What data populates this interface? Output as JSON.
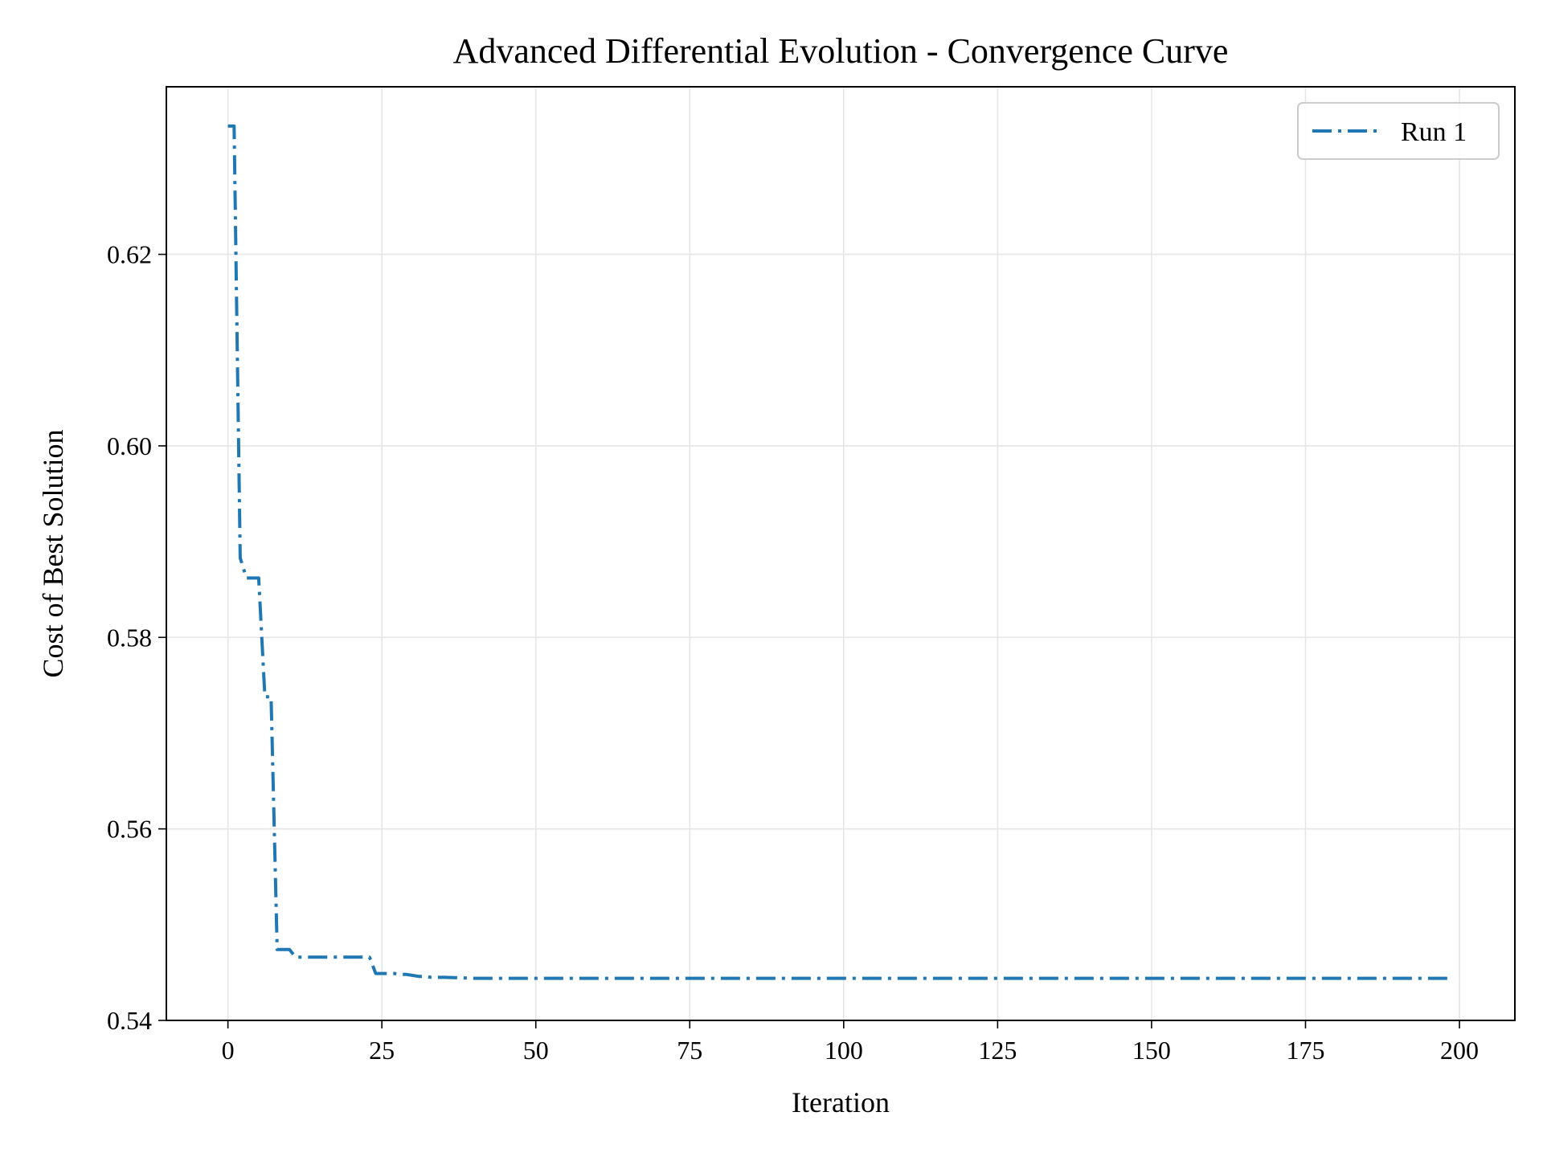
{
  "chart_data": {
    "type": "line",
    "title": "Advanced Differential Evolution - Convergence Curve",
    "xlabel": "Iteration",
    "ylabel": "Cost of Best Solution",
    "xlim": [
      -10,
      209
    ],
    "ylim": [
      0.54,
      0.6375
    ],
    "xticks": [
      0,
      25,
      50,
      75,
      100,
      125,
      150,
      175,
      200
    ],
    "xtick_labels": [
      "0",
      "25",
      "50",
      "75",
      "100",
      "125",
      "150",
      "175",
      "200"
    ],
    "yticks": [
      0.54,
      0.56,
      0.58,
      0.6,
      0.62
    ],
    "ytick_labels": [
      "0.54",
      "0.56",
      "0.58",
      "0.60",
      "0.62"
    ],
    "grid": true,
    "legend": {
      "position": "top-right",
      "entries": [
        "Run 1"
      ]
    },
    "series": [
      {
        "name": "Run 1",
        "color": "#1f77b4",
        "linestyle": "dash-dot",
        "x": [
          0,
          1,
          2,
          3,
          4,
          5,
          6,
          7,
          8,
          9,
          10,
          11,
          12,
          13,
          14,
          15,
          16,
          17,
          18,
          19,
          20,
          21,
          22,
          23,
          24,
          25,
          26,
          27,
          28,
          29,
          30,
          31,
          32,
          33,
          34,
          35,
          40,
          50,
          60,
          80,
          100,
          125,
          150,
          175,
          199
        ],
        "y": [
          0.6334,
          0.6334,
          0.5883,
          0.5862,
          0.5862,
          0.5862,
          0.5738,
          0.5738,
          0.5474,
          0.5474,
          0.5474,
          0.5466,
          0.5466,
          0.5466,
          0.5466,
          0.5466,
          0.5466,
          0.5466,
          0.5466,
          0.5466,
          0.5466,
          0.5466,
          0.5466,
          0.5466,
          0.5449,
          0.5449,
          0.5449,
          0.5449,
          0.5448,
          0.5448,
          0.5447,
          0.5446,
          0.5446,
          0.5445,
          0.5445,
          0.5445,
          0.5444,
          0.5444,
          0.5444,
          0.5444,
          0.5444,
          0.5444,
          0.5444,
          0.5444,
          0.5444
        ]
      }
    ]
  }
}
